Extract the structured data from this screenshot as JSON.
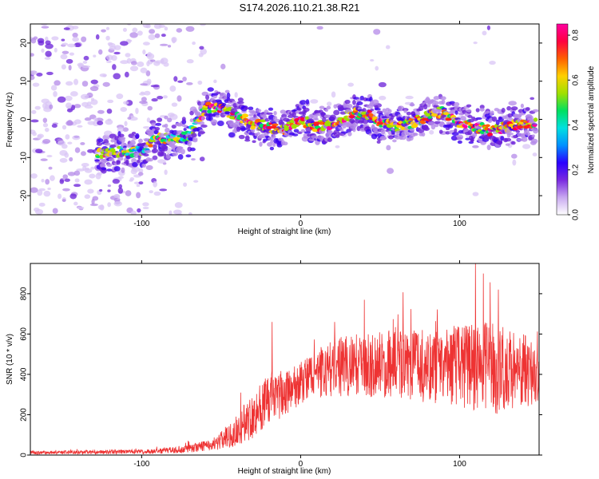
{
  "title": "S174.2026.110.21.38.R21",
  "chart_data": [
    {
      "type": "heatmap",
      "name": "spectrogram",
      "xlabel": "Height of straight line (km)",
      "ylabel": "Frequency (Hz)",
      "xlim": [
        -170,
        150
      ],
      "ylim": [
        -25,
        25
      ],
      "xticks": [
        -100,
        0,
        100
      ],
      "xtick_labels": [
        "-100",
        "0",
        "100"
      ],
      "yticks": [
        -20,
        -10,
        0,
        10,
        20
      ],
      "ytick_labels": [
        "-20",
        "-10",
        "0",
        "10",
        "20"
      ],
      "colorbar": {
        "label": "Normalized spectral amplitude",
        "range": [
          0.0,
          0.85
        ],
        "ticks": [
          0.0,
          0.2,
          0.4,
          0.6,
          0.8
        ],
        "tick_labels": [
          "0.0",
          "0.2",
          "0.4",
          "0.6",
          "0.8"
        ],
        "colormap": [
          "#ffffff",
          "#c8a8f0",
          "#7a2ae0",
          "#2a00ff",
          "#0090ff",
          "#00e0e0",
          "#00e060",
          "#a0e000",
          "#ffd000",
          "#ff6000",
          "#ff0040",
          "#ff00a0"
        ]
      },
      "ridge": {
        "x": [
          -125,
          -100,
          -90,
          -80,
          -70,
          -60,
          -50,
          -40,
          -30,
          -20,
          -10,
          0,
          10,
          20,
          30,
          40,
          50,
          60,
          70,
          80,
          90,
          100,
          110,
          120,
          130,
          145
        ],
        "freq": [
          -9,
          -8,
          -5,
          -5,
          -4,
          3,
          3,
          1,
          -1,
          -2,
          -3,
          0,
          -2,
          -1,
          1,
          2,
          -1,
          -2,
          -1,
          1,
          2,
          -1,
          -2,
          -3,
          -2,
          -1
        ]
      }
    },
    {
      "type": "line",
      "name": "snr",
      "xlabel": "Height of straight line (km)",
      "ylabel": "SNR (10 * v/v)",
      "xlim": [
        -170,
        150
      ],
      "ylim": [
        0,
        950
      ],
      "xticks": [
        -100,
        0,
        100
      ],
      "xtick_labels": [
        "-100",
        "0",
        "100"
      ],
      "yticks": [
        0,
        200,
        400,
        600,
        800
      ],
      "ytick_labels": [
        "0",
        "200",
        "400",
        "600",
        "800"
      ],
      "color": "#ee3333",
      "envelope": {
        "x": [
          -170,
          -120,
          -90,
          -70,
          -55,
          -45,
          -35,
          -25,
          -15,
          -5,
          5,
          15,
          25,
          40,
          60,
          80,
          100,
          120,
          135,
          150
        ],
        "mean": [
          12,
          15,
          18,
          30,
          55,
          90,
          160,
          240,
          290,
          330,
          380,
          420,
          440,
          450,
          450,
          440,
          440,
          430,
          420,
          410
        ],
        "spread": [
          8,
          10,
          12,
          20,
          30,
          60,
          100,
          130,
          120,
          110,
          110,
          130,
          150,
          160,
          170,
          180,
          200,
          230,
          200,
          150
        ]
      },
      "peaks": [
        {
          "x": -18,
          "y": 660
        },
        {
          "x": 110,
          "y": 950
        },
        {
          "x": 115,
          "y": 900
        },
        {
          "x": 40,
          "y": 770
        }
      ]
    }
  ]
}
